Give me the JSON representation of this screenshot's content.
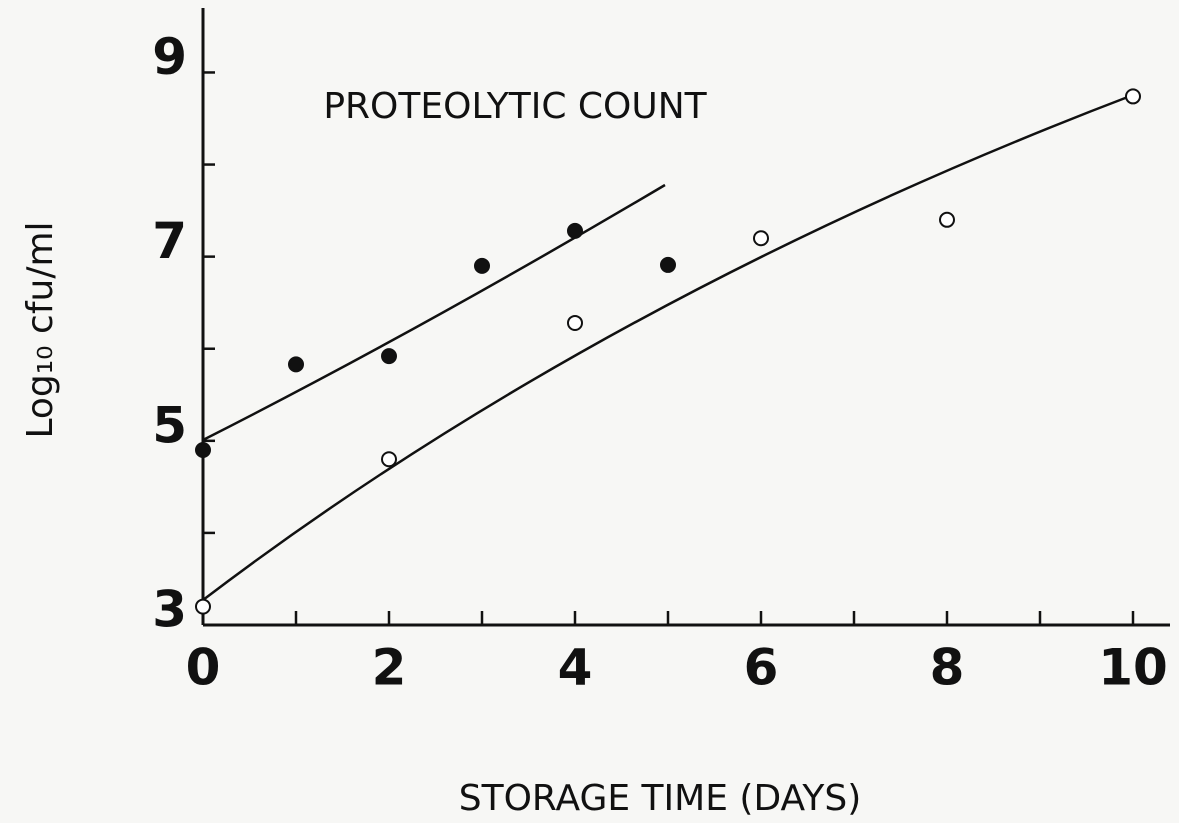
{
  "chart_data": {
    "type": "scatter",
    "title": "PROTEOLYTIC COUNT",
    "x_label": "STORAGE TIME (DAYS)",
    "y_label": "Log₁₀ cfu/ml",
    "xlim": [
      0,
      10
    ],
    "xticks": [
      0,
      2,
      4,
      6,
      8,
      10
    ],
    "xticks_minor": [
      1,
      3,
      5,
      7,
      9
    ],
    "ylim": [
      3,
      9.7
    ],
    "yticks": [
      3,
      5,
      7,
      9
    ],
    "yticks_minor": [
      4,
      6,
      8
    ],
    "series": [
      {
        "color": "#111111",
        "filled": true,
        "x": [
          0,
          1,
          2,
          3,
          4,
          5
        ],
        "values": [
          4.9,
          5.83,
          5.92,
          6.9,
          7.28,
          6.91
        ]
      },
      {
        "color": "#111111",
        "filled": false,
        "x": [
          0,
          2,
          4,
          6,
          8,
          10
        ],
        "values": [
          3.2,
          4.8,
          6.28,
          7.2,
          7.4,
          8.74
        ]
      }
    ]
  }
}
